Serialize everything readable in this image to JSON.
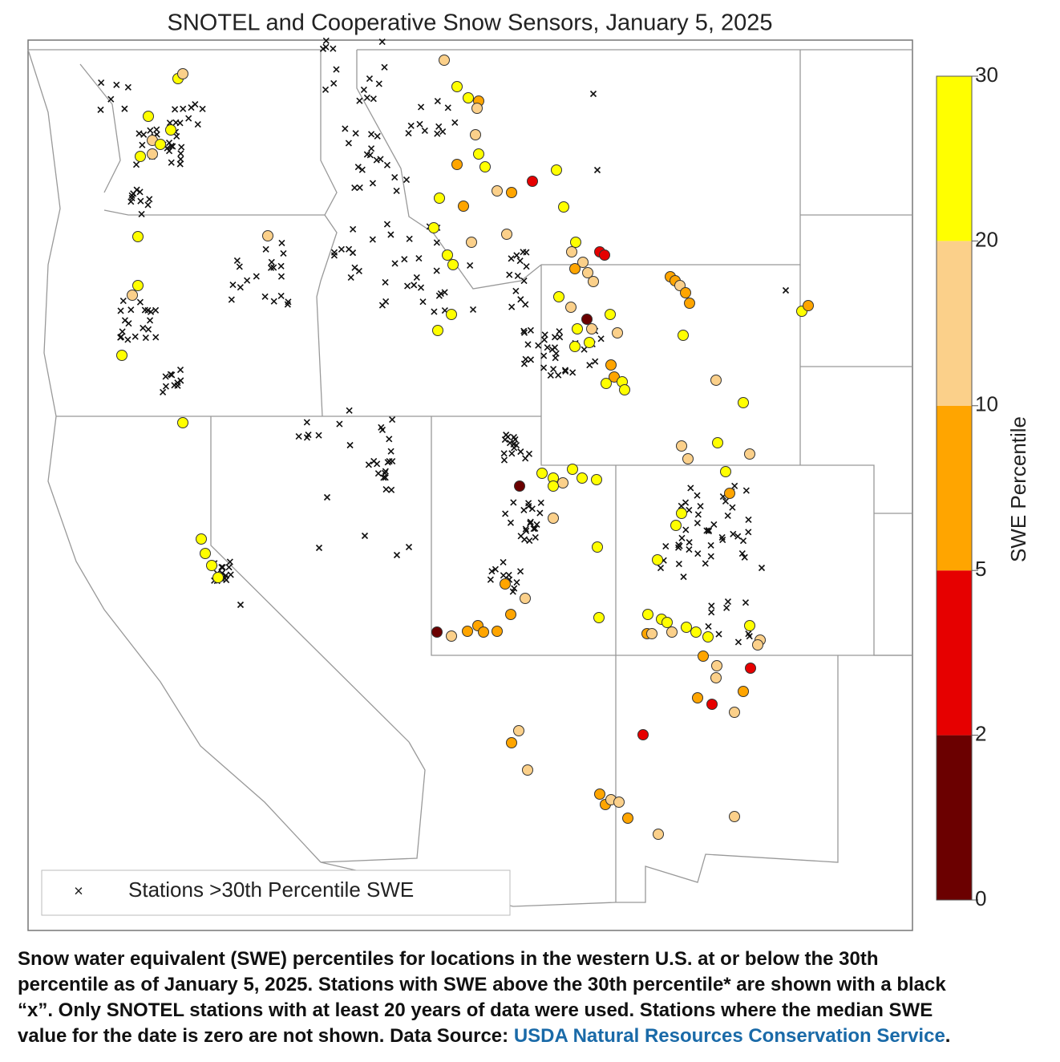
{
  "title": "SNOTEL and Cooperative Snow Sensors, January 5, 2025",
  "colorbar": {
    "label": "SWE Percentile",
    "ticks": [
      0,
      2,
      5,
      10,
      20,
      30
    ],
    "colors": [
      "#6b0000",
      "#e60000",
      "#ffa500",
      "#fbd08a",
      "#ffff00"
    ]
  },
  "legend": {
    "marker": "×",
    "text": "Stations >30th Percentile SWE"
  },
  "caption": {
    "lines": [
      "Snow water equivalent (SWE) percentiles for locations in the western U.S. at or below the 30th",
      "percentile as of January 5, 2025. Stations with SWE above the 30th percentile* are shown with a black",
      "“x”. Only SNOTEL stations with at least 20 years of data were used. Stations where the median SWE",
      "value for the date is zero are not shown. Data Source: "
    ],
    "link": "USDA Natural Resources Conservation Service",
    "end": "."
  }
}
